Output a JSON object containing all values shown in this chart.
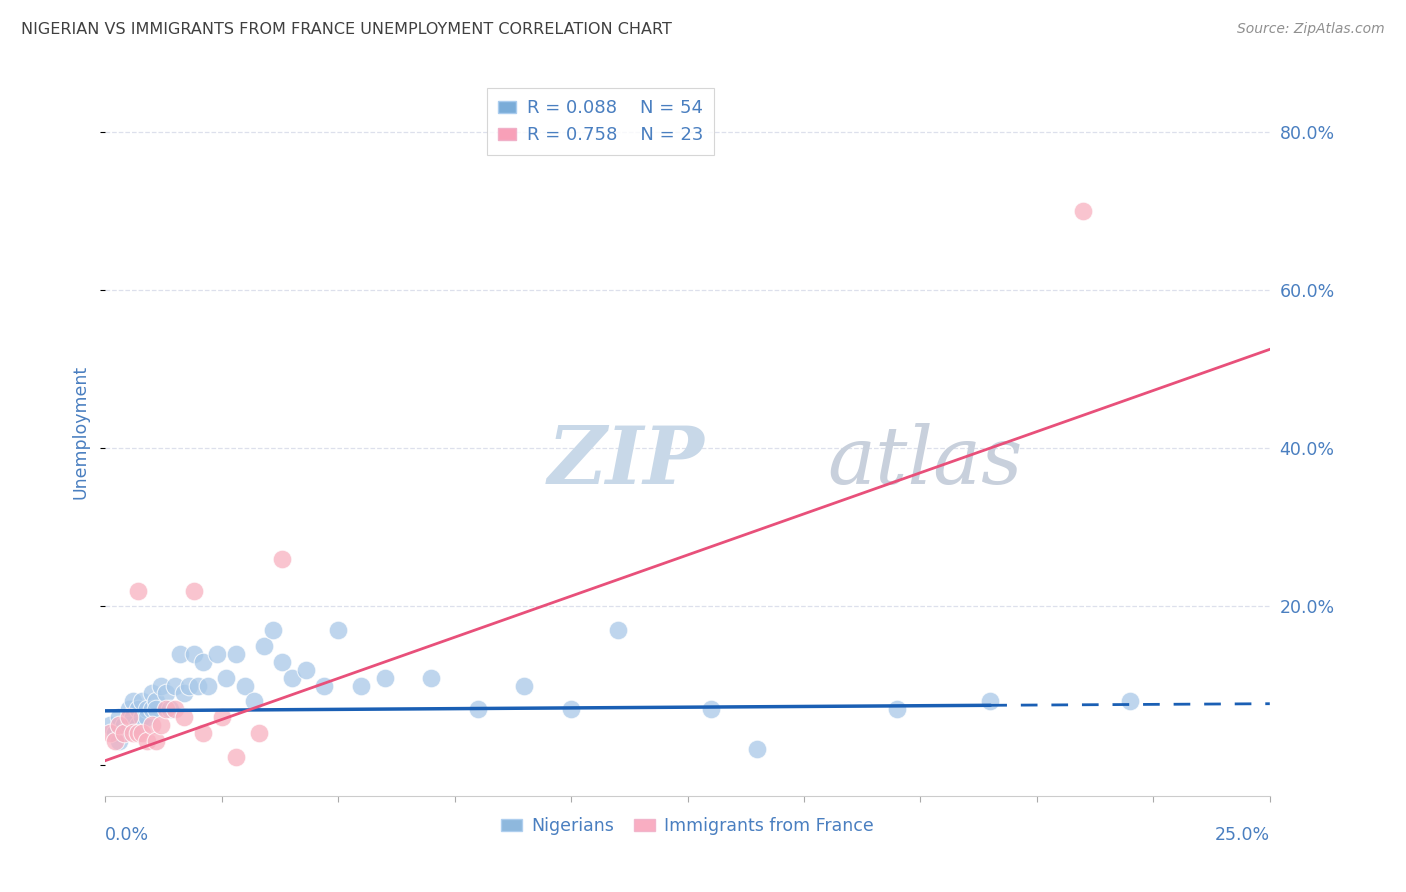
{
  "title": "NIGERIAN VS IMMIGRANTS FROM FRANCE UNEMPLOYMENT CORRELATION CHART",
  "source": "Source: ZipAtlas.com",
  "ylabel": "Unemployment",
  "ytick_labels": [
    "20.0%",
    "40.0%",
    "60.0%",
    "80.0%"
  ],
  "ytick_values": [
    0.2,
    0.4,
    0.6,
    0.8
  ],
  "xlim": [
    0.0,
    0.25
  ],
  "ylim": [
    -0.04,
    0.88
  ],
  "nigerian_R": 0.088,
  "nigerian_N": 54,
  "france_R": 0.758,
  "france_N": 23,
  "nigerian_color": "#a8c8e8",
  "france_color": "#f8b0c0",
  "nigerian_line_color": "#1a5fb4",
  "france_line_color": "#e8507a",
  "legend_blue_color": "#7aacd8",
  "legend_pink_color": "#f8a0b8",
  "watermark_ZIP_color": "#c8d8e8",
  "watermark_atlas_color": "#c8d0dc",
  "title_color": "#404040",
  "source_color": "#909090",
  "axis_label_color": "#4a7fc0",
  "grid_color": "#dde0ec",
  "france_line_x0": 0.0,
  "france_line_y0": 0.005,
  "france_line_x1": 0.25,
  "france_line_y1": 0.525,
  "nigerian_line_x0": 0.0,
  "nigerian_line_y0": 0.068,
  "nigerian_line_x1": 0.19,
  "nigerian_line_y1": 0.075,
  "nigerian_line_x1_dash": 0.25,
  "nigerian_line_y1_dash": 0.077,
  "nigerian_x": [
    0.001,
    0.002,
    0.003,
    0.003,
    0.004,
    0.005,
    0.005,
    0.006,
    0.006,
    0.007,
    0.007,
    0.008,
    0.008,
    0.009,
    0.009,
    0.01,
    0.01,
    0.011,
    0.011,
    0.012,
    0.013,
    0.014,
    0.015,
    0.016,
    0.017,
    0.018,
    0.019,
    0.02,
    0.021,
    0.022,
    0.024,
    0.026,
    0.028,
    0.03,
    0.032,
    0.034,
    0.036,
    0.038,
    0.04,
    0.043,
    0.047,
    0.05,
    0.055,
    0.06,
    0.07,
    0.08,
    0.09,
    0.1,
    0.11,
    0.13,
    0.14,
    0.17,
    0.19,
    0.22
  ],
  "nigerian_y": [
    0.05,
    0.04,
    0.06,
    0.03,
    0.05,
    0.07,
    0.05,
    0.08,
    0.06,
    0.07,
    0.05,
    0.08,
    0.06,
    0.07,
    0.06,
    0.09,
    0.07,
    0.08,
    0.07,
    0.1,
    0.09,
    0.07,
    0.1,
    0.14,
    0.09,
    0.1,
    0.14,
    0.1,
    0.13,
    0.1,
    0.14,
    0.11,
    0.14,
    0.1,
    0.08,
    0.15,
    0.17,
    0.13,
    0.11,
    0.12,
    0.1,
    0.17,
    0.1,
    0.11,
    0.11,
    0.07,
    0.1,
    0.07,
    0.17,
    0.07,
    0.02,
    0.07,
    0.08,
    0.08
  ],
  "france_x": [
    0.001,
    0.002,
    0.003,
    0.004,
    0.005,
    0.006,
    0.007,
    0.007,
    0.008,
    0.009,
    0.01,
    0.011,
    0.012,
    0.013,
    0.015,
    0.017,
    0.019,
    0.021,
    0.025,
    0.028,
    0.033,
    0.038,
    0.21
  ],
  "france_y": [
    0.04,
    0.03,
    0.05,
    0.04,
    0.06,
    0.04,
    0.22,
    0.04,
    0.04,
    0.03,
    0.05,
    0.03,
    0.05,
    0.07,
    0.07,
    0.06,
    0.22,
    0.04,
    0.06,
    0.01,
    0.04,
    0.26,
    0.7
  ]
}
